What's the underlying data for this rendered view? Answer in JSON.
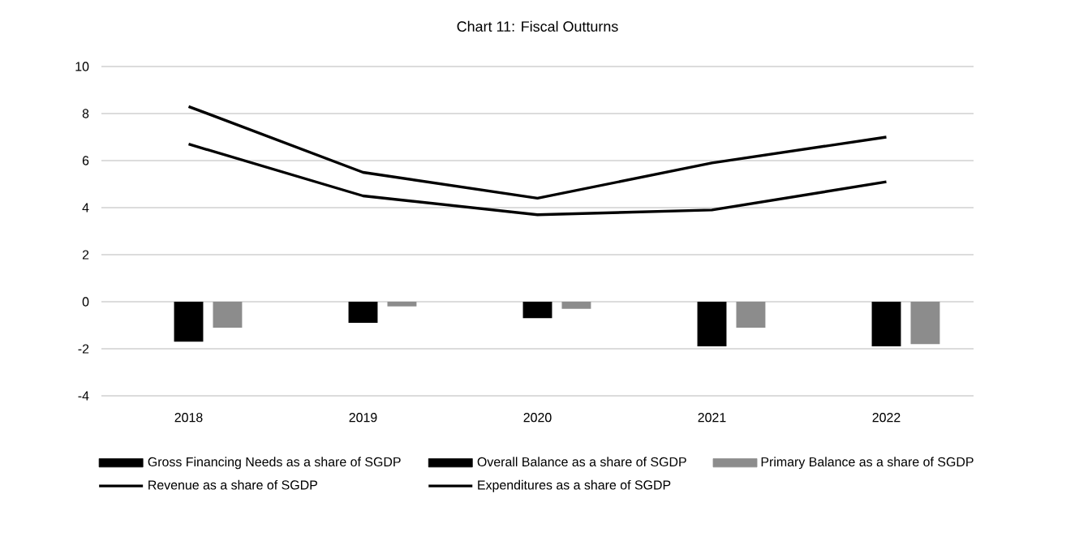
{
  "chart_data": {
    "type": "bar",
    "title": "Chart 11: Fiscal Outturns",
    "categories": [
      "2018",
      "2019",
      "2020",
      "2021",
      "2022"
    ],
    "series": [
      {
        "name": "Gross Financing Needs as a share of SGDP",
        "color": "#000000",
        "values": [
          null,
          null,
          null,
          null,
          null
        ]
      },
      {
        "name": "Overall Balance as a share of SGDP",
        "color": "#000000",
        "values": [
          -1.7,
          -0.9,
          -0.7,
          -1.9,
          -1.9
        ]
      },
      {
        "name": "Primary Balance as a share of SGDP",
        "color": "#8c8c8c",
        "values": [
          -1.1,
          -0.2,
          -0.3,
          -1.1,
          -1.8
        ]
      },
      {
        "name": "Revenue as a share of SGDP",
        "type": "line",
        "color": "#000000",
        "values": [
          6.7,
          4.5,
          3.7,
          3.9,
          5.1
        ]
      },
      {
        "name": "Expenditures as a share of SGDP",
        "type": "line",
        "color": "#000000",
        "values": [
          8.3,
          5.5,
          4.4,
          5.9,
          7.0
        ]
      }
    ],
    "ylim": [
      -4,
      10
    ],
    "yticks": [
      -4,
      -2,
      0,
      2,
      4,
      6,
      8,
      10
    ],
    "grid": "y",
    "legend": "bottom",
    "marker": "none"
  }
}
